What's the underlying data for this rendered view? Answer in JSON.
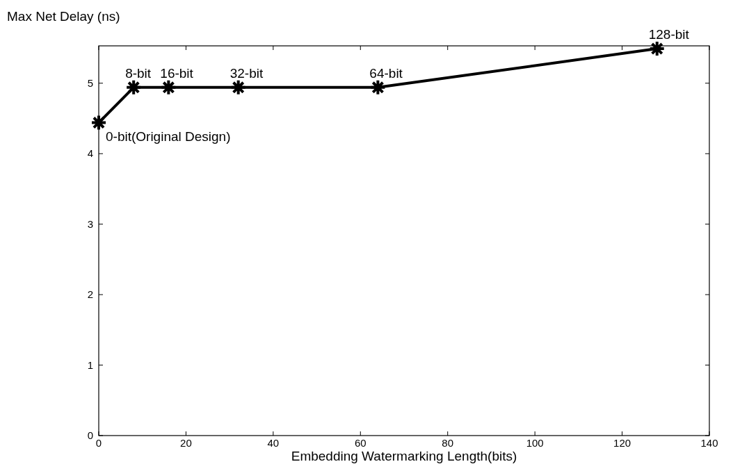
{
  "chart_data": {
    "type": "line",
    "ylabel": "Max Net Delay (ns)",
    "xlabel": "Embedding Watermarking Length(bits)",
    "x": [
      0,
      8,
      16,
      32,
      64,
      128
    ],
    "series": [
      {
        "color": "#000000",
        "values": [
          4.44,
          4.94,
          4.94,
          4.94,
          4.94,
          5.49
        ]
      }
    ],
    "xlim": [
      0,
      140
    ],
    "xticks": [
      0,
      20,
      40,
      60,
      80,
      100,
      120,
      140
    ],
    "ylim": [
      0,
      5.53
    ],
    "yticks": [
      0,
      1,
      2,
      3,
      4,
      5
    ],
    "marker": "cross",
    "line_style": "solid",
    "annotations": [
      {
        "text": "0-bit(Original Design)",
        "x": 0,
        "y": 4.44
      },
      {
        "text": "8-bit",
        "x": 8,
        "y": 4.94
      },
      {
        "text": "16-bit",
        "x": 16,
        "y": 4.94
      },
      {
        "text": "32-bit",
        "x": 32,
        "y": 4.94
      },
      {
        "text": "64-bit",
        "x": 64,
        "y": 4.94
      },
      {
        "text": "128-bit",
        "x": 128,
        "y": 5.49
      }
    ]
  }
}
